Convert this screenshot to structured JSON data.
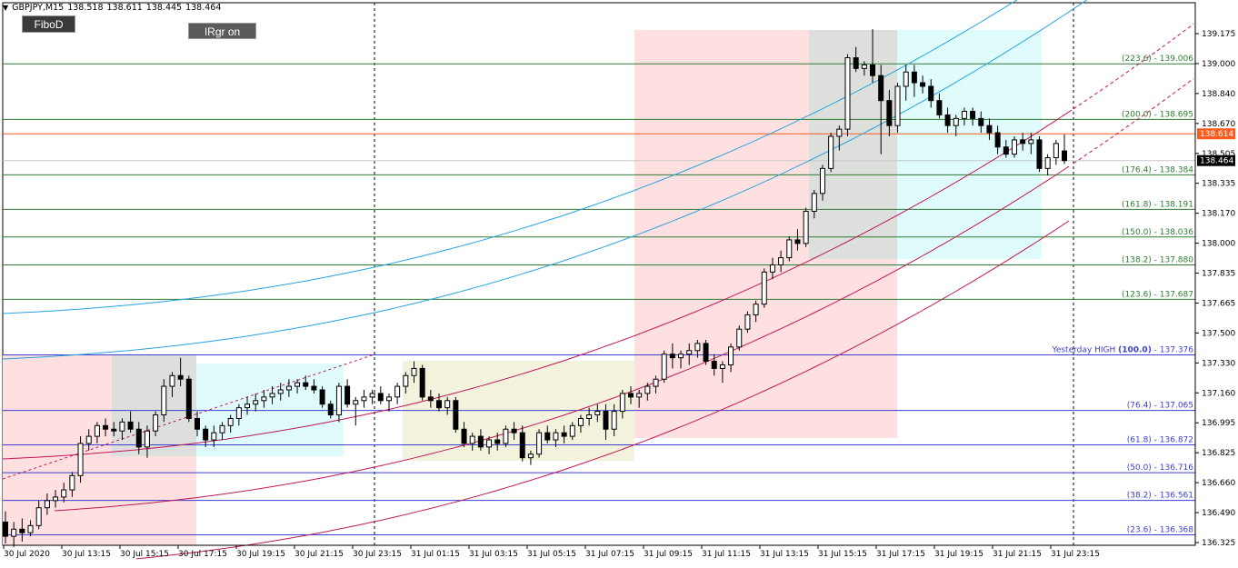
{
  "chart_header": {
    "symbol": "GBPJPY,M15",
    "open": "138.518",
    "high": "138.611",
    "low": "138.445",
    "close": "138.464",
    "dropdown_glyph": "▼"
  },
  "buttons": {
    "fibo": "FiboD",
    "irgr": "IRgr on"
  },
  "price_axis": {
    "ticks": [
      "139.175",
      "139.000",
      "138.840",
      "138.670",
      "138.505",
      "138.335",
      "138.170",
      "138.000",
      "137.835",
      "137.665",
      "137.500",
      "137.330",
      "137.160",
      "136.995",
      "136.825",
      "136.660",
      "136.490",
      "136.325"
    ],
    "current_price_label": "138.464",
    "current_price_color": "#000000",
    "level_price_label": "138.614",
    "level_price_color": "#ff5a1f"
  },
  "time_axis": {
    "ticks": [
      "30 Jul 2020",
      "30 Jul 13:15",
      "30 Jul 15:15",
      "30 Jul 17:15",
      "30 Jul 19:15",
      "30 Jul 21:15",
      "30 Jul 23:15",
      "31 Jul 01:15",
      "31 Jul 03:15",
      "31 Jul 05:15",
      "31 Jul 07:15",
      "31 Jul 09:15",
      "31 Jul 11:15",
      "31 Jul 13:15",
      "31 Jul 15:15",
      "31 Jul 17:15",
      "31 Jul 19:15",
      "31 Jul 21:15",
      "31 Jul 23:15"
    ]
  },
  "fibo_levels_upper": [
    {
      "label": "(223.6) - 139.006",
      "price": 139.006
    },
    {
      "label": "(200.0) - 138.695",
      "price": 138.695
    },
    {
      "label": "(176.4) - 138.384",
      "price": 138.384
    },
    {
      "label": "(161.8) - 138.191",
      "price": 138.191
    },
    {
      "label": "(150.0) - 138.036",
      "price": 138.036
    },
    {
      "label": "(138.2) - 137.880",
      "price": 137.88
    },
    {
      "label": "(123.6) - 137.687",
      "price": 137.687
    }
  ],
  "fibo_level_mid": {
    "prefix": "Yesterday HIGH ",
    "bold": "(100.0)",
    "suffix": " - 137.376",
    "price": 137.376
  },
  "fibo_levels_lower": [
    {
      "label": "(76.4) - 137.065",
      "price": 137.065
    },
    {
      "label": "(61.8) - 136.872",
      "price": 136.872
    },
    {
      "label": "(50.0) - 136.716",
      "price": 136.716
    },
    {
      "label": "(38.2) - 136.561",
      "price": 136.561
    },
    {
      "label": "(23.6) - 136.368",
      "price": 136.368
    }
  ],
  "colors": {
    "upper_fibo": "#2e7d32",
    "lower_fibo": "#3a3fcf",
    "level_line": "#ff5a1f",
    "regression_blue": "#29a3e0",
    "regression_red": "#c2185b",
    "zone_pink": "#fde0df",
    "zone_gray": "#dcdfdc",
    "zone_cyan": "#dffbfb",
    "zone_beige": "#f3f3dd",
    "candle": "#000000"
  },
  "chart_data": {
    "type": "candlestick",
    "symbol": "GBPJPY",
    "timeframe": "M15",
    "ylim": [
      136.3,
      139.3
    ],
    "candles": [
      [
        136.44,
        136.5,
        136.32,
        136.36
      ],
      [
        136.36,
        136.44,
        136.3,
        136.4
      ],
      [
        136.4,
        136.46,
        136.33,
        136.38
      ],
      [
        136.38,
        136.45,
        136.36,
        136.42
      ],
      [
        136.42,
        136.56,
        136.4,
        136.52
      ],
      [
        136.52,
        136.6,
        136.48,
        136.56
      ],
      [
        136.56,
        136.62,
        136.52,
        136.58
      ],
      [
        136.58,
        136.66,
        136.55,
        136.62
      ],
      [
        136.62,
        136.72,
        136.58,
        136.7
      ],
      [
        136.7,
        136.92,
        136.66,
        136.88
      ],
      [
        136.88,
        136.96,
        136.84,
        136.92
      ],
      [
        136.92,
        137.0,
        136.88,
        136.98
      ],
      [
        136.98,
        137.02,
        136.92,
        136.96
      ],
      [
        136.96,
        137.0,
        136.92,
        136.95
      ],
      [
        136.95,
        137.02,
        136.9,
        137.0
      ],
      [
        137.0,
        137.06,
        136.94,
        136.96
      ],
      [
        136.96,
        137.0,
        136.82,
        136.86
      ],
      [
        136.86,
        136.98,
        136.8,
        136.95
      ],
      [
        136.95,
        137.06,
        136.92,
        137.04
      ],
      [
        137.04,
        137.24,
        137.0,
        137.2
      ],
      [
        137.2,
        137.28,
        137.14,
        137.26
      ],
      [
        137.26,
        137.36,
        137.2,
        137.24
      ],
      [
        137.24,
        137.26,
        137.0,
        137.02
      ],
      [
        137.02,
        137.06,
        136.92,
        136.96
      ],
      [
        136.96,
        136.98,
        136.86,
        136.9
      ],
      [
        136.9,
        136.98,
        136.86,
        136.94
      ],
      [
        136.94,
        137.0,
        136.9,
        136.98
      ],
      [
        136.98,
        137.04,
        136.94,
        137.02
      ],
      [
        137.02,
        137.1,
        136.98,
        137.08
      ],
      [
        137.08,
        137.14,
        137.04,
        137.1
      ],
      [
        137.1,
        137.16,
        137.06,
        137.12
      ],
      [
        137.12,
        137.18,
        137.08,
        137.14
      ],
      [
        137.14,
        137.2,
        137.1,
        137.16
      ],
      [
        137.16,
        137.22,
        137.12,
        137.18
      ],
      [
        137.18,
        137.24,
        137.14,
        137.2
      ],
      [
        137.2,
        137.24,
        137.16,
        137.22
      ],
      [
        137.22,
        137.26,
        137.18,
        137.2
      ],
      [
        137.2,
        137.24,
        137.16,
        137.18
      ],
      [
        137.18,
        137.2,
        137.08,
        137.1
      ],
      [
        137.1,
        137.12,
        137.02,
        137.04
      ],
      [
        137.04,
        137.22,
        137.0,
        137.2
      ],
      [
        137.2,
        137.24,
        137.08,
        137.1
      ],
      [
        137.1,
        137.14,
        136.98,
        137.12
      ],
      [
        137.12,
        137.18,
        137.08,
        137.14
      ],
      [
        137.14,
        137.18,
        137.1,
        137.16
      ],
      [
        137.16,
        137.2,
        137.1,
        137.12
      ],
      [
        137.12,
        137.16,
        137.06,
        137.14
      ],
      [
        137.14,
        137.22,
        137.1,
        137.2
      ],
      [
        137.2,
        137.28,
        137.16,
        137.26
      ],
      [
        137.26,
        137.34,
        137.22,
        137.3
      ],
      [
        137.3,
        137.32,
        137.12,
        137.14
      ],
      [
        137.14,
        137.18,
        137.08,
        137.12
      ],
      [
        137.12,
        137.16,
        137.06,
        137.08
      ],
      [
        137.08,
        137.14,
        137.04,
        137.12
      ],
      [
        137.12,
        137.14,
        136.94,
        136.96
      ],
      [
        136.96,
        137.0,
        136.86,
        136.88
      ],
      [
        136.88,
        136.94,
        136.84,
        136.92
      ],
      [
        136.92,
        136.96,
        136.84,
        136.86
      ],
      [
        136.86,
        136.92,
        136.82,
        136.9
      ],
      [
        136.9,
        136.94,
        136.84,
        136.88
      ],
      [
        136.88,
        136.98,
        136.86,
        136.96
      ],
      [
        136.96,
        137.0,
        136.9,
        136.94
      ],
      [
        136.94,
        136.98,
        136.78,
        136.8
      ],
      [
        136.8,
        136.84,
        136.76,
        136.82
      ],
      [
        136.82,
        136.96,
        136.8,
        136.94
      ],
      [
        136.94,
        136.98,
        136.88,
        136.9
      ],
      [
        136.9,
        136.96,
        136.86,
        136.94
      ],
      [
        136.94,
        136.98,
        136.88,
        136.92
      ],
      [
        136.92,
        137.0,
        136.9,
        136.98
      ],
      [
        136.98,
        137.04,
        136.94,
        137.02
      ],
      [
        137.02,
        137.08,
        136.98,
        137.04
      ],
      [
        137.04,
        137.1,
        137.0,
        137.06
      ],
      [
        137.06,
        137.1,
        136.9,
        136.96
      ],
      [
        136.96,
        137.1,
        136.92,
        137.06
      ],
      [
        137.06,
        137.18,
        137.02,
        137.16
      ],
      [
        137.16,
        137.2,
        137.1,
        137.14
      ],
      [
        137.14,
        137.18,
        137.08,
        137.16
      ],
      [
        137.16,
        137.22,
        137.12,
        137.2
      ],
      [
        137.2,
        137.26,
        137.16,
        137.24
      ],
      [
        137.24,
        137.4,
        137.22,
        137.38
      ],
      [
        137.38,
        137.44,
        137.3,
        137.36
      ],
      [
        137.36,
        137.4,
        137.3,
        137.38
      ],
      [
        137.38,
        137.44,
        137.32,
        137.4
      ],
      [
        137.4,
        137.46,
        137.36,
        137.44
      ],
      [
        137.44,
        137.46,
        137.32,
        137.34
      ],
      [
        137.34,
        137.38,
        137.26,
        137.3
      ],
      [
        137.3,
        137.34,
        137.22,
        137.32
      ],
      [
        137.32,
        137.44,
        137.28,
        137.42
      ],
      [
        137.42,
        137.54,
        137.4,
        137.52
      ],
      [
        137.52,
        137.62,
        137.5,
        137.6
      ],
      [
        137.6,
        137.68,
        137.56,
        137.66
      ],
      [
        137.66,
        137.86,
        137.64,
        137.84
      ],
      [
        137.84,
        137.92,
        137.8,
        137.88
      ],
      [
        137.88,
        137.96,
        137.84,
        137.92
      ],
      [
        137.92,
        138.04,
        137.9,
        138.02
      ],
      [
        138.02,
        138.08,
        137.96,
        138.0
      ],
      [
        138.0,
        138.2,
        137.98,
        138.18
      ],
      [
        138.18,
        138.3,
        138.14,
        138.28
      ],
      [
        138.28,
        138.44,
        138.24,
        138.42
      ],
      [
        138.42,
        138.62,
        138.4,
        138.6
      ],
      [
        138.6,
        138.66,
        138.52,
        138.64
      ],
      [
        138.64,
        139.06,
        138.6,
        139.04
      ],
      [
        139.04,
        139.1,
        138.96,
        138.98
      ],
      [
        138.98,
        139.02,
        138.94,
        139.0
      ],
      [
        139.0,
        139.2,
        138.9,
        138.94
      ],
      [
        138.94,
        139.0,
        138.5,
        138.8
      ],
      [
        138.8,
        138.86,
        138.6,
        138.66
      ],
      [
        138.66,
        138.9,
        138.62,
        138.88
      ],
      [
        138.88,
        139.0,
        138.8,
        138.96
      ],
      [
        138.96,
        139.0,
        138.82,
        138.9
      ],
      [
        138.9,
        138.94,
        138.84,
        138.88
      ],
      [
        138.88,
        138.92,
        138.76,
        138.8
      ],
      [
        138.8,
        138.84,
        138.7,
        138.72
      ],
      [
        138.72,
        138.76,
        138.62,
        138.66
      ],
      [
        138.66,
        138.72,
        138.6,
        138.7
      ],
      [
        138.7,
        138.76,
        138.66,
        138.74
      ],
      [
        138.74,
        138.76,
        138.66,
        138.7
      ],
      [
        138.7,
        138.74,
        138.62,
        138.66
      ],
      [
        138.66,
        138.7,
        138.58,
        138.62
      ],
      [
        138.62,
        138.66,
        138.5,
        138.54
      ],
      [
        138.54,
        138.58,
        138.48,
        138.5
      ],
      [
        138.5,
        138.6,
        138.48,
        138.58
      ],
      [
        138.58,
        138.62,
        138.52,
        138.56
      ],
      [
        138.56,
        138.62,
        138.5,
        138.58
      ],
      [
        138.58,
        138.6,
        138.4,
        138.42
      ],
      [
        138.42,
        138.5,
        138.38,
        138.48
      ],
      [
        138.48,
        138.58,
        138.44,
        138.56
      ],
      [
        138.518,
        138.611,
        138.445,
        138.464
      ]
    ]
  }
}
